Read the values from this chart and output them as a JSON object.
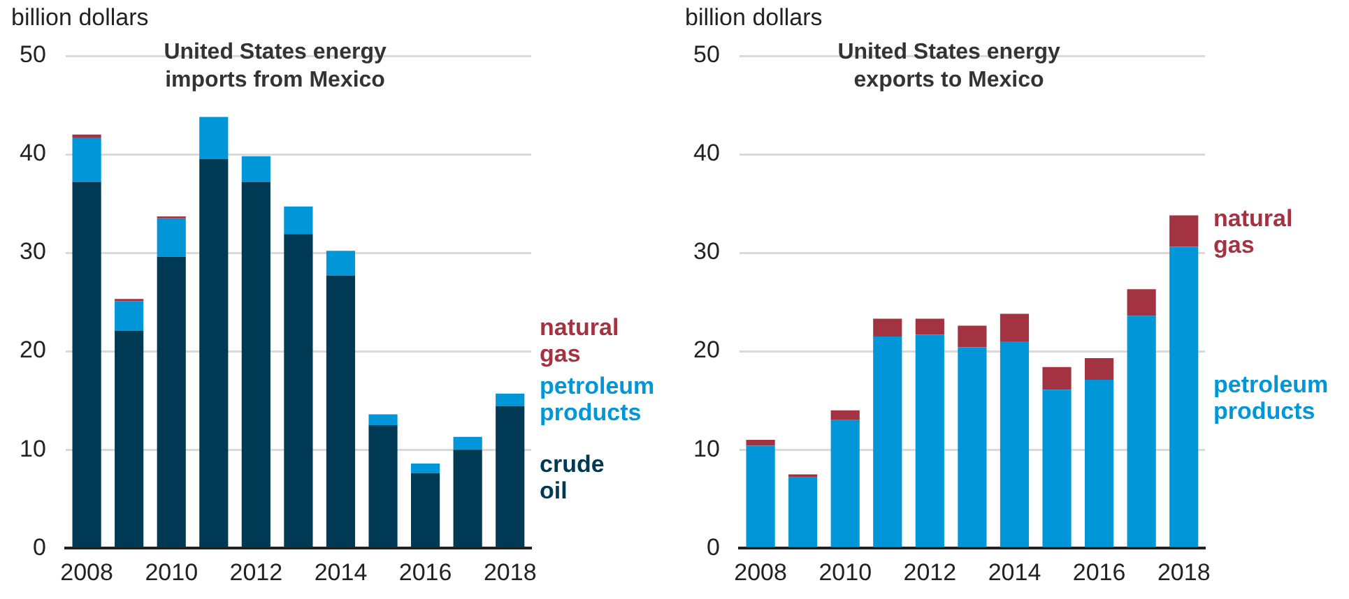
{
  "chart_data": [
    {
      "type": "bar",
      "title": "United States energy imports from Mexico",
      "ylabel": "billion dollars",
      "categories": [
        "2008",
        null,
        "2010",
        null,
        "2012",
        null,
        "2014",
        null,
        "2016",
        null,
        "2018"
      ],
      "stacked": true,
      "ylim": [
        0,
        50
      ],
      "yticks": [
        0,
        10,
        20,
        30,
        40,
        50
      ],
      "grid": "y",
      "legend": "right",
      "series": [
        {
          "name": "crude oil",
          "color": "#003953",
          "values": [
            37.2,
            22.1,
            29.6,
            39.5,
            37.2,
            31.9,
            27.7,
            12.5,
            7.6,
            10.0,
            14.4
          ]
        },
        {
          "name": "petroleum products",
          "color": "#0096d7",
          "values": [
            4.5,
            3.0,
            3.9,
            4.3,
            2.6,
            2.8,
            2.5,
            1.1,
            1.0,
            1.3,
            1.3
          ]
        },
        {
          "name": "natural gas",
          "color": "#a33340",
          "values": [
            0.3,
            0.2,
            0.2,
            0,
            0,
            0,
            0,
            0,
            0,
            0,
            0
          ]
        }
      ]
    },
    {
      "type": "bar",
      "title": "United States energy exports to Mexico",
      "ylabel": "billion dollars",
      "categories": [
        "2008",
        null,
        "2010",
        null,
        "2012",
        null,
        "2014",
        null,
        "2016",
        null,
        "2018"
      ],
      "stacked": true,
      "ylim": [
        0,
        50
      ],
      "yticks": [
        0,
        10,
        20,
        30,
        40,
        50
      ],
      "grid": "y",
      "legend": "right",
      "series": [
        {
          "name": "petroleum products",
          "color": "#0096d7",
          "values": [
            10.4,
            7.2,
            13.0,
            21.5,
            21.7,
            20.4,
            21.0,
            16.1,
            17.1,
            23.6,
            30.6
          ]
        },
        {
          "name": "natural gas",
          "color": "#a33340",
          "values": [
            0.6,
            0.3,
            1.0,
            1.8,
            1.6,
            2.2,
            2.8,
            2.3,
            2.2,
            2.7,
            3.2
          ]
        }
      ]
    }
  ]
}
